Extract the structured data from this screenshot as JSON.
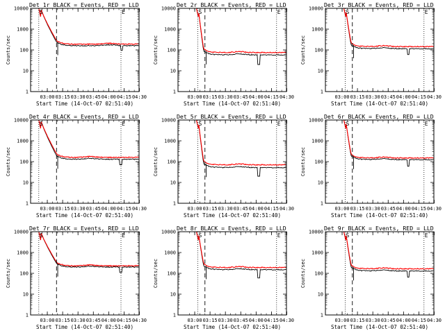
{
  "colors": {
    "events": "#000000",
    "lld": "#ff0000",
    "axes": "#000000",
    "background": "#ffffff"
  },
  "common": {
    "ylabel": "Counts/sec",
    "xlabel": "Start Time (14-Oct-07 02:51:40)",
    "xticks": [
      "03:00",
      "03:15",
      "03:30",
      "03:45",
      "04:00",
      "04:15",
      "04:30"
    ],
    "yticks": [
      "1",
      "10",
      "100",
      "1000",
      "10000"
    ],
    "marker_s": "S",
    "marker_e": "E"
  },
  "chart_data": [
    {
      "type": "line",
      "title": "Det 1r BLACK = Events, RED = LLD",
      "xlabel": "Start Time (14-Oct-07 02:51:40)",
      "ylabel": "Counts/sec",
      "yscale": "log",
      "xlim_minutes": [
        -8,
        98
      ],
      "ylim": [
        1,
        10000
      ],
      "x_start_minutes": 0,
      "events_level": 160,
      "lld_level": 190,
      "events_dip": {
        "at": 81,
        "value": 95
      },
      "bump_at": 69,
      "series": [
        {
          "name": "Events",
          "start_value": 10000
        },
        {
          "name": "LLD",
          "start_value": 10000
        }
      ],
      "dotted_lines": [
        "02:51:40",
        "04:12"
      ],
      "dashed_line": "03:09"
    },
    {
      "type": "line",
      "title": "Det 2r BLACK = Events, RED = LLD",
      "xlabel": "Start Time (14-Oct-07 02:51:40)",
      "ylabel": "Counts/sec",
      "yscale": "log",
      "xlim_minutes": [
        -8,
        98
      ],
      "ylim": [
        1,
        10000
      ],
      "x_start_minutes": 10,
      "events_level": 58,
      "lld_level": 75,
      "events_dip": {
        "at": 71,
        "value": 20
      },
      "bump_at": 52,
      "series": [
        {
          "name": "Events",
          "start_value": 10000
        },
        {
          "name": "LLD",
          "start_value": 10000
        }
      ],
      "dotted_lines": [
        "03:03",
        "04:20"
      ],
      "dashed_line": "03:10"
    },
    {
      "type": "line",
      "title": "Det 3r BLACK = Events, RED = LLD",
      "xlabel": "Start Time (14-Oct-07 02:51:40)",
      "ylabel": "Counts/sec",
      "yscale": "log",
      "xlim_minutes": [
        -8,
        98
      ],
      "ylim": [
        1,
        10000
      ],
      "x_start_minutes": 10,
      "events_level": 115,
      "lld_level": 145,
      "events_dip": {
        "at": 73,
        "value": 60
      },
      "bump_at": 48,
      "series": [
        {
          "name": "Events",
          "start_value": 10000
        },
        {
          "name": "LLD",
          "start_value": 10000
        }
      ],
      "dotted_lines": [
        "03:03",
        "04:20"
      ],
      "dashed_line": "03:10"
    },
    {
      "type": "line",
      "title": "Det 4r BLACK = Events, RED = LLD",
      "xlabel": "Start Time (14-Oct-07 02:51:40)",
      "ylabel": "Counts/sec",
      "yscale": "log",
      "xlim_minutes": [
        -8,
        98
      ],
      "ylim": [
        1,
        10000
      ],
      "x_start_minutes": 0,
      "events_level": 130,
      "lld_level": 160,
      "events_dip": {
        "at": 80,
        "value": 70
      },
      "bump_at": 50,
      "series": [
        {
          "name": "Events",
          "start_value": 10000
        },
        {
          "name": "LLD",
          "start_value": 10000
        }
      ],
      "dotted_lines": [
        "02:51:40",
        "04:12"
      ],
      "dashed_line": "03:09"
    },
    {
      "type": "line",
      "title": "Det 5r BLACK = Events, RED = LLD",
      "xlabel": "Start Time (14-Oct-07 02:51:40)",
      "ylabel": "Counts/sec",
      "yscale": "log",
      "xlim_minutes": [
        -8,
        98
      ],
      "ylim": [
        1,
        10000
      ],
      "x_start_minutes": 10,
      "events_level": 52,
      "lld_level": 70,
      "events_dip": {
        "at": 71,
        "value": 20
      },
      "bump_at": 52,
      "series": [
        {
          "name": "Events",
          "start_value": 10000
        },
        {
          "name": "LLD",
          "start_value": 10000
        }
      ],
      "dotted_lines": [
        "03:03",
        "04:20"
      ],
      "dashed_line": "03:10"
    },
    {
      "type": "line",
      "title": "Det 6r BLACK = Events, RED = LLD",
      "xlabel": "Start Time (14-Oct-07 02:51:40)",
      "ylabel": "Counts/sec",
      "yscale": "log",
      "xlim_minutes": [
        -8,
        98
      ],
      "ylim": [
        1,
        10000
      ],
      "x_start_minutes": 10,
      "events_level": 125,
      "lld_level": 150,
      "events_dip": {
        "at": 73,
        "value": 60
      },
      "bump_at": 48,
      "series": [
        {
          "name": "Events",
          "start_value": 10000
        },
        {
          "name": "LLD",
          "start_value": 10000
        }
      ],
      "dotted_lines": [
        "03:03",
        "04:20"
      ],
      "dashed_line": "03:10"
    },
    {
      "type": "line",
      "title": "Det 7r BLACK = Events, RED = LLD",
      "xlabel": "Start Time (14-Oct-07 02:51:40)",
      "ylabel": "Counts/sec",
      "yscale": "log",
      "xlim_minutes": [
        -8,
        98
      ],
      "ylim": [
        1,
        10000
      ],
      "x_start_minutes": 0,
      "events_level": 200,
      "lld_level": 230,
      "events_dip": {
        "at": 80,
        "value": 110
      },
      "bump_at": 50,
      "series": [
        {
          "name": "Events",
          "start_value": 10000
        },
        {
          "name": "LLD",
          "start_value": 10000
        }
      ],
      "dotted_lines": [
        "02:51:40",
        "04:12"
      ],
      "dashed_line": "03:09"
    },
    {
      "type": "line",
      "title": "Det 8r BLACK = Events, RED = LLD",
      "xlabel": "Start Time (14-Oct-07 02:51:40)",
      "ylabel": "Counts/sec",
      "yscale": "log",
      "xlim_minutes": [
        -8,
        98
      ],
      "ylim": [
        1,
        10000
      ],
      "x_start_minutes": 10,
      "events_level": 150,
      "lld_level": 190,
      "events_dip": {
        "at": 71,
        "value": 60
      },
      "bump_at": 52,
      "series": [
        {
          "name": "Events",
          "start_value": 10000
        },
        {
          "name": "LLD",
          "start_value": 10000
        }
      ],
      "dotted_lines": [
        "03:03",
        "04:20"
      ],
      "dashed_line": "03:10"
    },
    {
      "type": "line",
      "title": "Det 9r BLACK = Events, RED = LLD",
      "xlabel": "Start Time (14-Oct-07 02:51:40)",
      "ylabel": "Counts/sec",
      "yscale": "log",
      "xlim_minutes": [
        -8,
        98
      ],
      "ylim": [
        1,
        10000
      ],
      "x_start_minutes": 10,
      "events_level": 130,
      "lld_level": 165,
      "events_dip": {
        "at": 73,
        "value": 65
      },
      "bump_at": 48,
      "series": [
        {
          "name": "Events",
          "start_value": 10000
        },
        {
          "name": "LLD",
          "start_value": 10000
        }
      ],
      "dotted_lines": [
        "03:03",
        "04:20"
      ],
      "dashed_line": "03:10"
    }
  ]
}
